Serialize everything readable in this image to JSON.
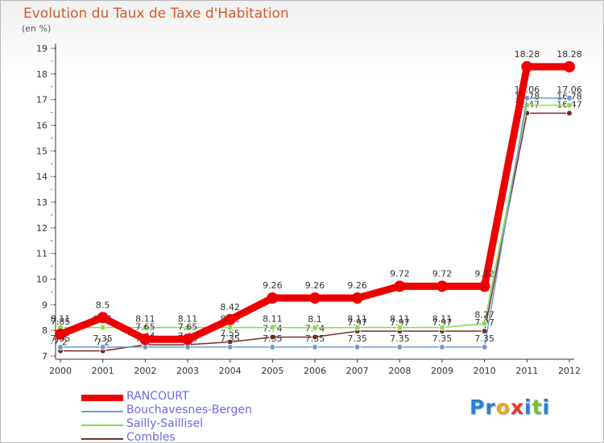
{
  "title": "Evolution du Taux de Taxe d'Habitation",
  "subtitle": "(en %)",
  "logo": {
    "letters": [
      "P",
      "r",
      "o",
      "x",
      "i",
      "t",
      "i"
    ],
    "colors": [
      "#2d7fd0",
      "#2d7fd0",
      "#f2a21a",
      "#e8392a",
      "#2d7fd0",
      "#7cbf2f",
      "#2d7fd0"
    ]
  },
  "chart_data": {
    "type": "line",
    "x": [
      "2000",
      "2001",
      "2002",
      "2003",
      "2004",
      "2005",
      "2006",
      "2007",
      "2008",
      "2009",
      "2010",
      "2011",
      "2012"
    ],
    "ylim": [
      7,
      19
    ],
    "yticks": [
      7,
      8,
      9,
      10,
      11,
      12,
      13,
      14,
      15,
      16,
      17,
      18,
      19
    ],
    "grid": false,
    "legend_position": "bottom-left",
    "series": [
      {
        "name": "RANCOURT",
        "color": "#ee0000",
        "values": [
          7.85,
          8.5,
          7.65,
          7.65,
          8.42,
          9.26,
          9.26,
          9.26,
          9.72,
          9.72,
          9.72,
          18.28,
          18.28
        ],
        "labels": [
          "7.85",
          "8.5",
          "7.65",
          "7.65",
          "8.42",
          "9.26",
          "9.26",
          "9.26",
          "9.72",
          "9.72",
          "9.72",
          "18.28",
          "18.28"
        ]
      },
      {
        "name": "Bouchavesnes-Bergen",
        "color": "#6b9bd1",
        "values": [
          7.35,
          7.35,
          7.35,
          7.35,
          7.35,
          7.35,
          7.35,
          7.35,
          7.35,
          7.35,
          7.35,
          17.06,
          17.06
        ],
        "labels": [
          "7.35",
          "7.35",
          "7.35",
          "7.35",
          "7.35",
          "7.35",
          "7.35",
          "7.35",
          "7.35",
          "7.35",
          "7.35",
          "17.06",
          "17.06"
        ]
      },
      {
        "name": "Sailly-Saillisel",
        "color": "#88dd44",
        "values": [
          8.11,
          8.11,
          8.11,
          8.11,
          8.11,
          8.11,
          8.1,
          8.11,
          8.11,
          8.11,
          8.27,
          16.78,
          16.78
        ],
        "labels": [
          "8.11",
          "8.11",
          "8.11",
          "8.11",
          "8.11",
          "8.11",
          "8.1",
          "8.11",
          "8.11",
          "8.11",
          "8.27",
          "16.78",
          "16.78"
        ]
      },
      {
        "name": "Combles",
        "color": "#7a2a2a",
        "values": [
          7.2,
          7.2,
          7.44,
          7.44,
          7.55,
          7.74,
          7.74,
          7.97,
          7.97,
          7.97,
          7.97,
          16.47,
          16.47
        ],
        "labels": [
          "7.2",
          "7.2",
          "7.44",
          "7.44",
          "7.55",
          "7.74",
          "7.74",
          "7.97",
          "7.97",
          "7.97",
          "7.97",
          "16.47",
          "16.47"
        ]
      }
    ]
  }
}
